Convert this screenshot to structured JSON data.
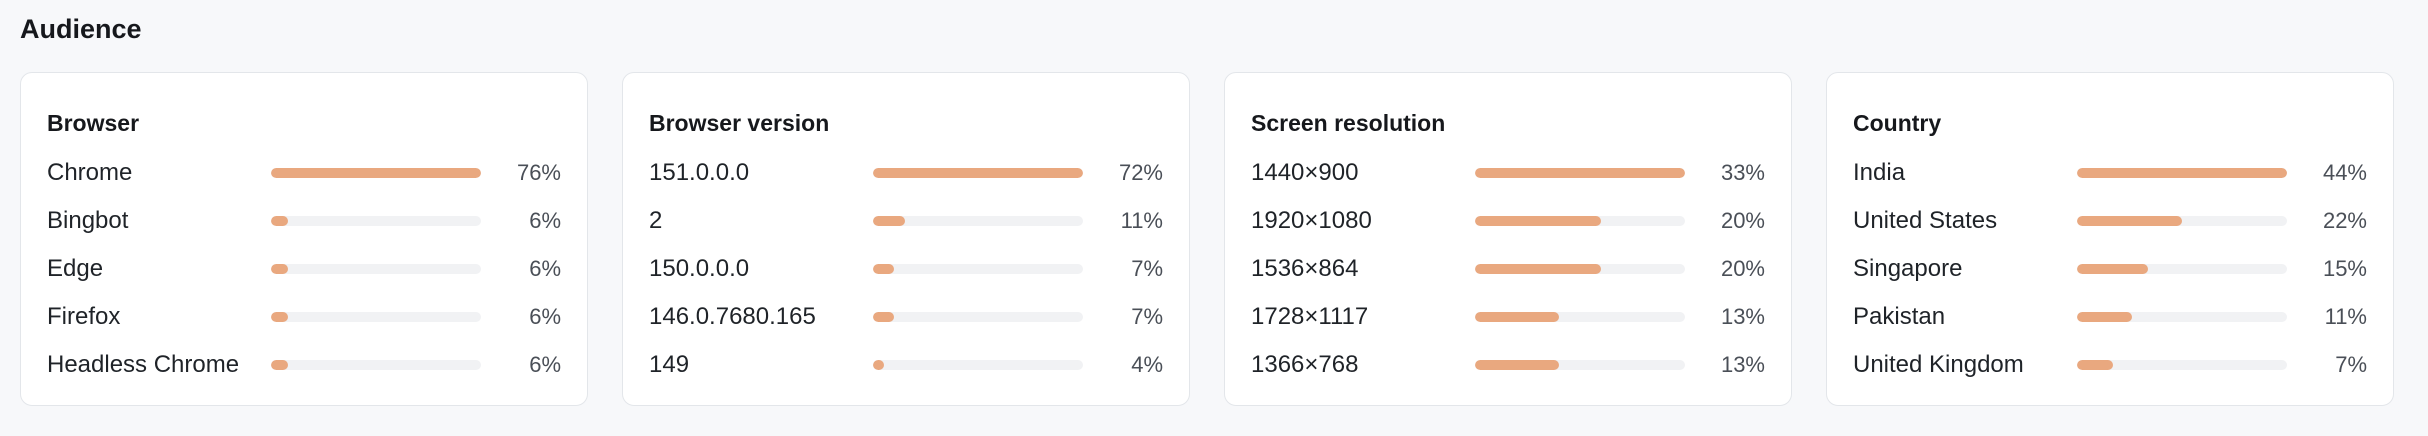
{
  "section_title": "Audience",
  "colors": {
    "bar_fill": "#e9a87f",
    "bar_track": "#f1f2f4"
  },
  "cards": [
    {
      "title": "Browser",
      "rows": [
        {
          "label": "Chrome",
          "value": "76%",
          "fill": 1.0
        },
        {
          "label": "Bingbot",
          "value": "6%",
          "fill": 0.08
        },
        {
          "label": "Edge",
          "value": "6%",
          "fill": 0.08
        },
        {
          "label": "Firefox",
          "value": "6%",
          "fill": 0.08
        },
        {
          "label": "Headless Chrome",
          "value": "6%",
          "fill": 0.08
        }
      ]
    },
    {
      "title": "Browser version",
      "rows": [
        {
          "label": "151.0.0.0",
          "value": "72%",
          "fill": 1.0
        },
        {
          "label": "2",
          "value": "11%",
          "fill": 0.15
        },
        {
          "label": "150.0.0.0",
          "value": "7%",
          "fill": 0.1
        },
        {
          "label": "146.0.7680.165",
          "value": "7%",
          "fill": 0.1
        },
        {
          "label": "149",
          "value": "4%",
          "fill": 0.05
        }
      ]
    },
    {
      "title": "Screen resolution",
      "rows": [
        {
          "label": "1440×900",
          "value": "33%",
          "fill": 1.0
        },
        {
          "label": "1920×1080",
          "value": "20%",
          "fill": 0.6
        },
        {
          "label": "1536×864",
          "value": "20%",
          "fill": 0.6
        },
        {
          "label": "1728×1117",
          "value": "13%",
          "fill": 0.4
        },
        {
          "label": "1366×768",
          "value": "13%",
          "fill": 0.4
        }
      ]
    },
    {
      "title": "Country",
      "rows": [
        {
          "label": "India",
          "value": "44%",
          "fill": 1.0
        },
        {
          "label": "United States",
          "value": "22%",
          "fill": 0.5
        },
        {
          "label": "Singapore",
          "value": "15%",
          "fill": 0.34
        },
        {
          "label": "Pakistan",
          "value": "11%",
          "fill": 0.26
        },
        {
          "label": "United Kingdom",
          "value": "7%",
          "fill": 0.17
        }
      ]
    }
  ]
}
